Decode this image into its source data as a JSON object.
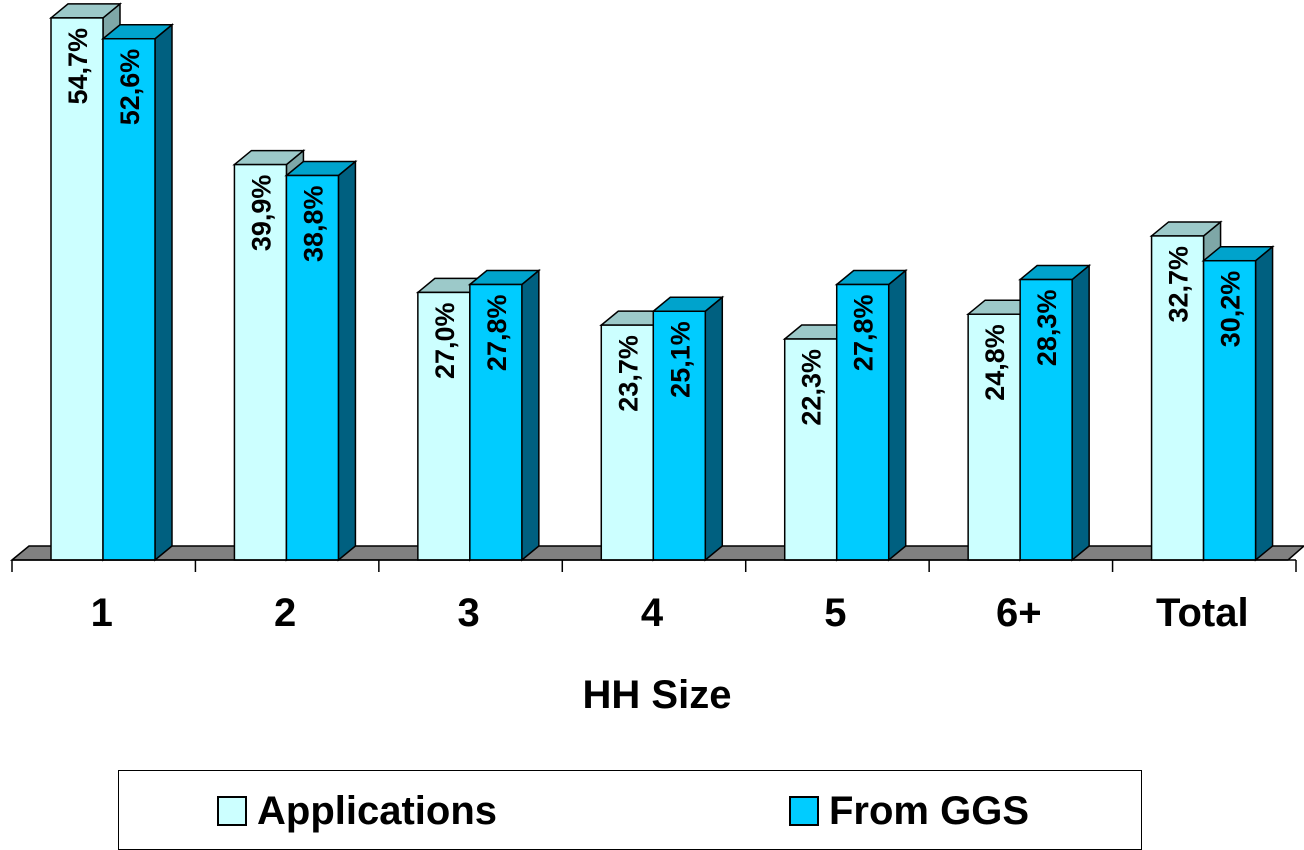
{
  "chart_data": {
    "type": "bar",
    "xlabel": "HH Size",
    "categories": [
      "1",
      "2",
      "3",
      "4",
      "5",
      "6+",
      "Total"
    ],
    "series": [
      {
        "name": "Applications",
        "values": [
          54.7,
          39.9,
          27.0,
          23.7,
          22.3,
          24.8,
          32.7
        ],
        "labels": [
          "54,7%",
          "39,9%",
          "27,0%",
          "23,7%",
          "22,3%",
          "24,8%",
          "32,7%"
        ],
        "color": "#ccffff"
      },
      {
        "name": "From GGS",
        "values": [
          52.6,
          38.8,
          27.8,
          25.1,
          27.8,
          28.3,
          30.2
        ],
        "labels": [
          "52,6%",
          "38,8%",
          "27,8%",
          "25,1%",
          "27,8%",
          "28,3%",
          "30,2%"
        ],
        "color": "#00ccff"
      }
    ],
    "style": "3d-clustered-column",
    "grid": false,
    "value_axis_visible": false,
    "legend_position": "bottom"
  }
}
